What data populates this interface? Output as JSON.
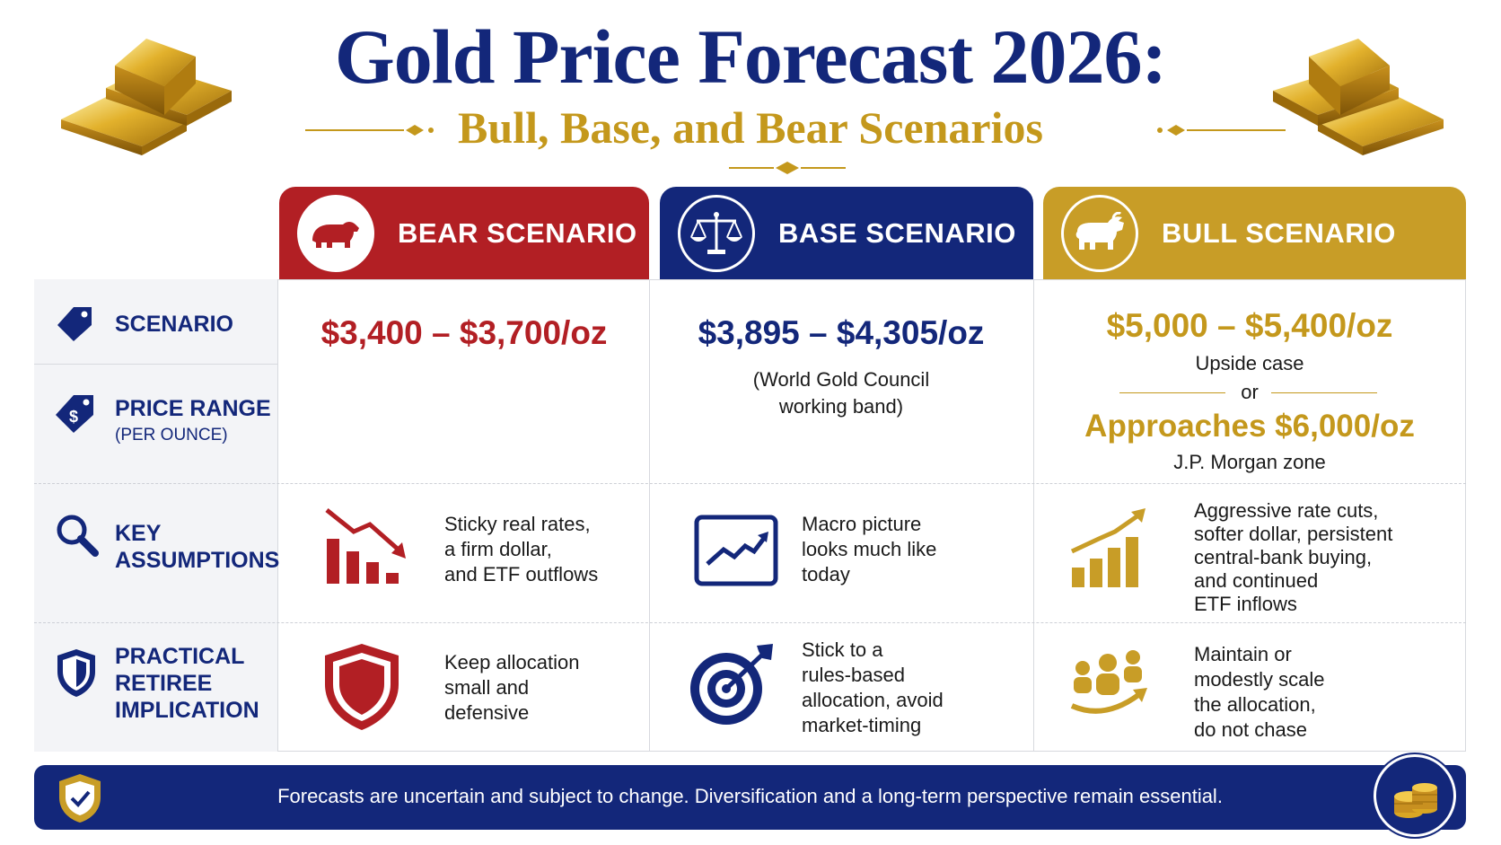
{
  "header": {
    "title": "Gold Price Forecast 2026:",
    "subtitle": "Bull, Base, and Bear Scenarios"
  },
  "scenarios": {
    "bear": {
      "label": "BEAR SCENARIO",
      "icon": "bear-icon",
      "color": "#b21f24"
    },
    "base": {
      "label": "BASE SCENARIO",
      "icon": "scales-icon",
      "color": "#13277a"
    },
    "bull": {
      "label": "BULL SCENARIO",
      "icon": "bull-icon",
      "color": "#c89d27"
    }
  },
  "row_labels": {
    "scenario": "SCENARIO",
    "price_range": "PRICE RANGE",
    "price_range_sub": "(PER OUNCE)",
    "key_assumptions_1": "KEY",
    "key_assumptions_2": "ASSUMPTIONS",
    "practical_1": "PRACTICAL",
    "practical_2": "RETIREE",
    "practical_3": "IMPLICATION"
  },
  "price": {
    "bear": "$3,400 – $3,700/oz",
    "base": "$3,895 – $4,305/oz",
    "base_note_1": "(World Gold Council",
    "base_note_2": "working band)",
    "bull": "$5,000 – $5,400/oz",
    "bull_note": "Upside case",
    "bull_or": "or",
    "bull_alt": "Approaches $6,000/oz",
    "bull_alt_note": "J.P. Morgan zone"
  },
  "assumptions": {
    "bear": [
      "Sticky real rates,",
      "a firm dollar,",
      "and ETF outflows"
    ],
    "base": [
      "Macro picture",
      "looks much like",
      "today"
    ],
    "bull": [
      "Aggressive rate cuts,",
      "softer dollar, persistent",
      "central-bank buying,",
      "and continued",
      "ETF inflows"
    ]
  },
  "implications": {
    "bear": [
      "Keep allocation",
      "small and",
      "defensive"
    ],
    "base": [
      "Stick to a",
      "rules-based",
      "allocation, avoid",
      "market-timing"
    ],
    "bull": [
      "Maintain or",
      "modestly scale",
      "the allocation,",
      "do not chase"
    ]
  },
  "footer": {
    "text": "Forecasts are uncertain and subject to change. Diversification and a long-term perspective remain essential."
  },
  "colors": {
    "navy": "#13277a",
    "red": "#b21f24",
    "gold": "#c89d27"
  }
}
